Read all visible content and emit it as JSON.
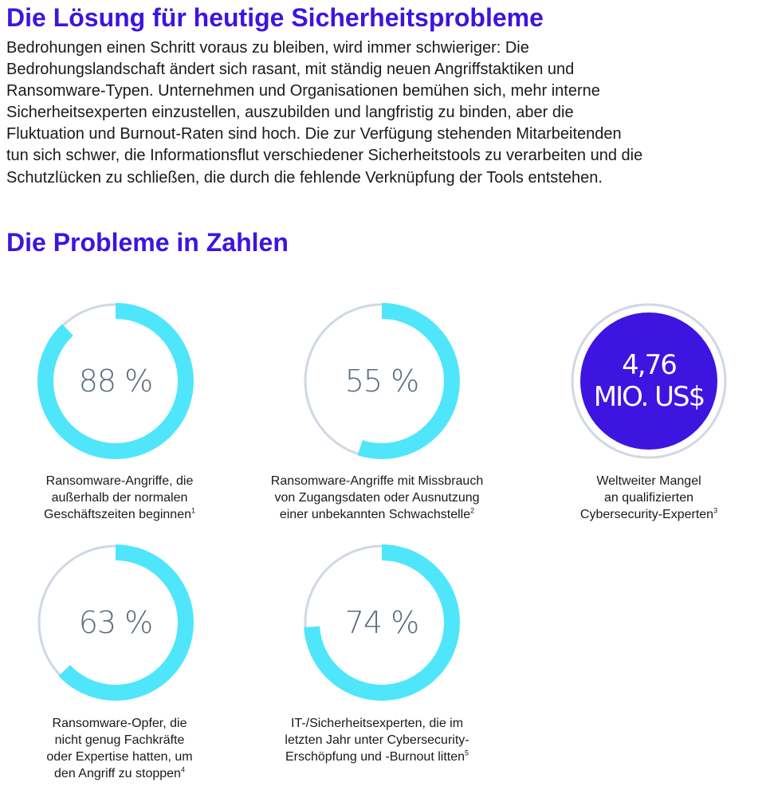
{
  "heading": "Die Lösung für heutige Sicherheitsprobleme",
  "intro_lines": [
    "Bedrohungen einen Schritt voraus zu bleiben, wird immer schwieriger: Die",
    "Bedrohungslandschaft ändert sich rasant, mit ständig neuen Angriffstaktiken und",
    "Ransomware-Typen. Unternehmen und Organisationen bemühen sich, mehr interne",
    "Sicherheitsexperten einzustellen, auszubilden und langfristig zu binden, aber die",
    "Fluktuation und Burnout-Raten sind hoch. Die zur Verfügung stehenden Mitarbeitenden",
    "tun sich schwer, die Informationsflut verschiedener Sicherheitstools zu verarbeiten und die",
    "Schutzlücken zu schließen, die durch die fehlende Verknüpfung der Tools entstehen."
  ],
  "subheading": "Die Probleme in Zahlen",
  "colors": {
    "heading": "#3d14e0",
    "ring_fill": "#4fe6fb",
    "ring_track": "#cfd8e3",
    "stat_text": "#5c6b7c",
    "money_circle": "#3d14e0"
  },
  "stats": [
    {
      "value": "88 %",
      "percent": 88,
      "caption": [
        "Ransomware-Angriffe, die",
        "außerhalb der normalen",
        "Geschäftszeiten beginnen"
      ],
      "footnote": "1"
    },
    {
      "value": "55 %",
      "percent": 55,
      "caption": [
        "Ransomware-Angriffe mit Missbrauch",
        "von Zugangsdaten oder Ausnutzung",
        "einer unbekannten Schwachstelle"
      ],
      "footnote": "2"
    },
    {
      "value_lines": [
        "4,76",
        "MIO. US$"
      ],
      "caption": [
        "Weltweiter Mangel",
        "an qualifizierten",
        "Cybersecurity-Experten"
      ],
      "footnote": "3"
    },
    {
      "value": "63 %",
      "percent": 63,
      "caption": [
        "Ransomware-Opfer, die",
        "nicht genug Fachkräfte",
        "oder Expertise hatten, um",
        "den Angriff zu stoppen"
      ],
      "footnote": "4"
    },
    {
      "value": "74 %",
      "percent": 74,
      "caption": [
        "IT-/Sicherheitsexperten, die im",
        "letzten Jahr unter Cybersecurity-",
        "Erschöpfung und -Burnout litten"
      ],
      "footnote": "5"
    }
  ]
}
